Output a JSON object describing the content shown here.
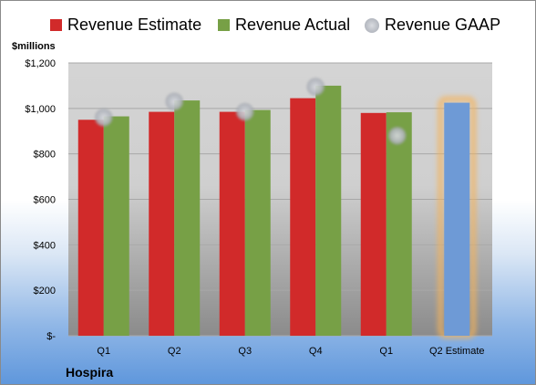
{
  "legend": {
    "estimate_label": "Revenue Estimate",
    "actual_label": "Revenue Actual",
    "gaap_label": "Revenue GAAP"
  },
  "units_label": "$millions",
  "company": "Hospira",
  "colors": {
    "estimate": "#d12a2a",
    "actual": "#77a046",
    "gaap": "#b8bcc4",
    "forecast": "#6e9ad6",
    "forecast_glow": "#f5b35a"
  },
  "chart_data": {
    "type": "bar",
    "categories": [
      "Q1",
      "Q2",
      "Q3",
      "Q4",
      "Q1",
      "Q2 Estimate"
    ],
    "series": [
      {
        "name": "Revenue Estimate",
        "values": [
          950,
          985,
          985,
          1045,
          980,
          null
        ]
      },
      {
        "name": "Revenue Actual",
        "values": [
          965,
          1035,
          993,
          1100,
          983,
          1025
        ]
      },
      {
        "name": "Revenue GAAP",
        "values": [
          960,
          1030,
          985,
          1095,
          880,
          null
        ]
      }
    ],
    "ylim": [
      0,
      1200
    ],
    "yticks": [
      0,
      200,
      400,
      600,
      800,
      1000,
      1200
    ],
    "ytick_labels": [
      "$-",
      "$200",
      "$400",
      "$600",
      "$800",
      "$1,000",
      "$1,200"
    ],
    "ylabel": "$millions",
    "grid": true,
    "legend_position": "top"
  }
}
